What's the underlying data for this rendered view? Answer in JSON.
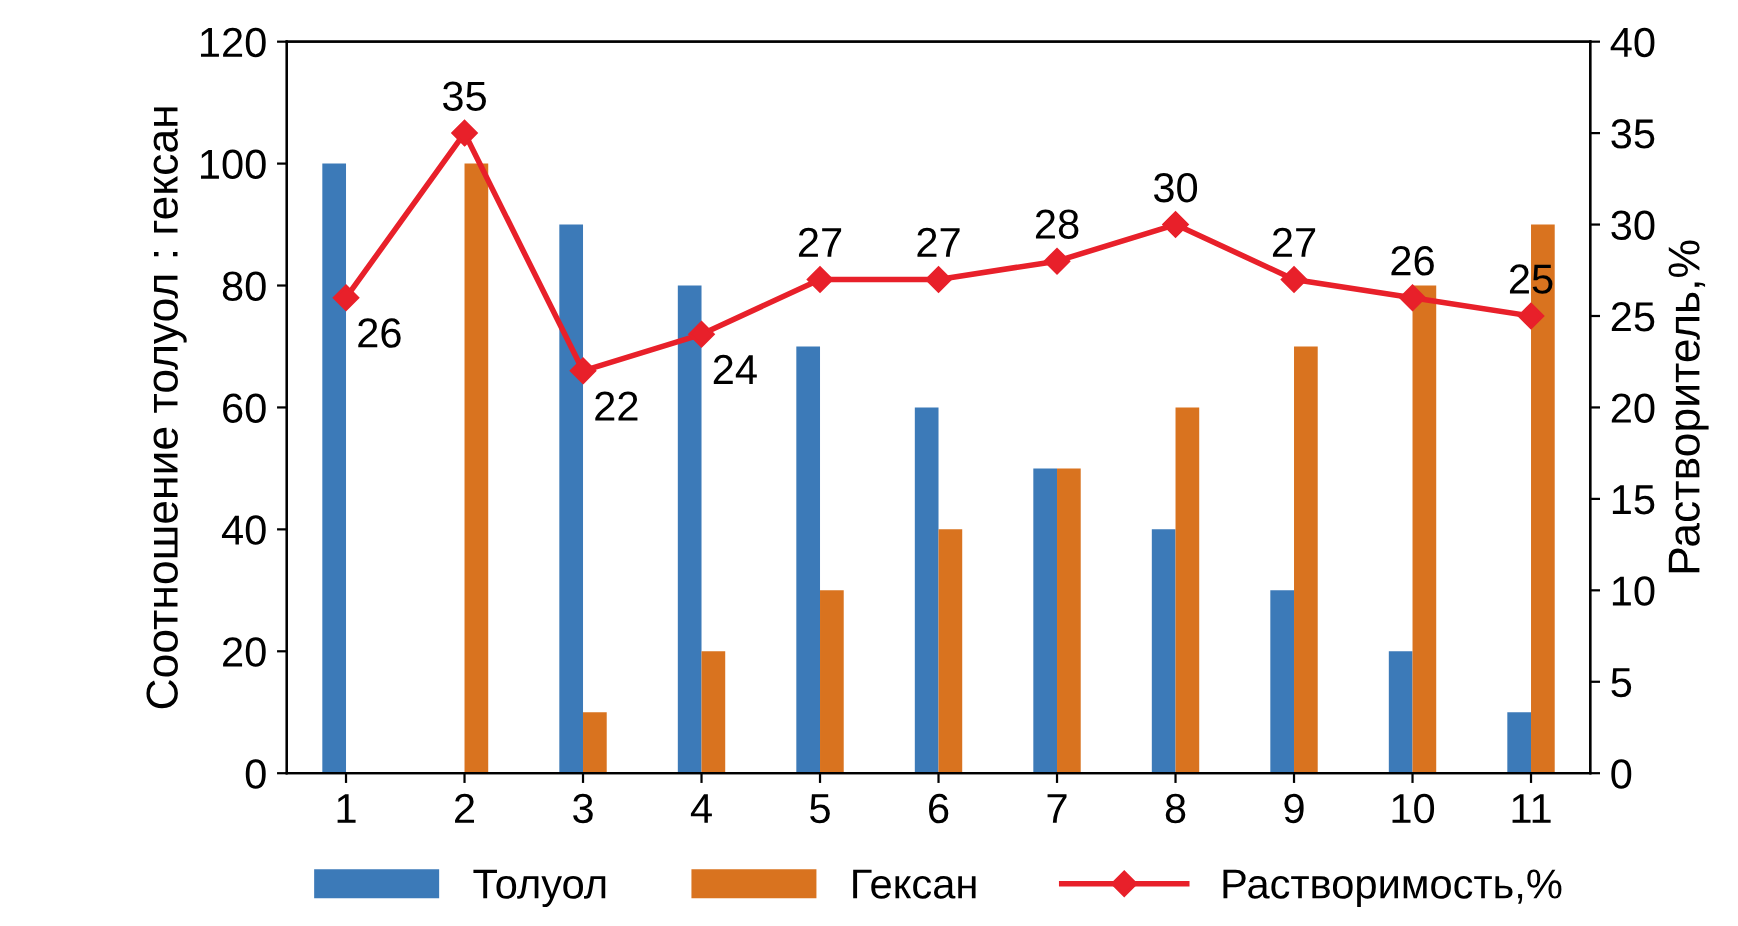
{
  "chart_data": {
    "type": "bar",
    "categories": [
      "1",
      "2",
      "3",
      "4",
      "5",
      "6",
      "7",
      "8",
      "9",
      "10",
      "11"
    ],
    "series": [
      {
        "name": "Толуол",
        "color": "#3c7ab8",
        "values": [
          100,
          0,
          90,
          80,
          70,
          60,
          50,
          40,
          30,
          20,
          10
        ]
      },
      {
        "name": "Гексан",
        "color": "#d9731f",
        "values": [
          0,
          100,
          10,
          20,
          30,
          40,
          50,
          60,
          70,
          80,
          90
        ]
      },
      {
        "name": "Растворимость,%",
        "type": "line",
        "axis": "y2",
        "color": "#e8202a",
        "marker": "diamond",
        "data_labels": true,
        "values": [
          26,
          35,
          22,
          24,
          27,
          27,
          28,
          30,
          27,
          26,
          25
        ]
      }
    ],
    "ylabel": "Соотношение толуол : гексан",
    "y2label": "Растворитель,%",
    "ylim": [
      0,
      120
    ],
    "yticks": [
      0,
      20,
      40,
      60,
      80,
      100,
      120
    ],
    "y2lim": [
      0,
      40
    ],
    "y2ticks": [
      0,
      5,
      10,
      15,
      20,
      25,
      30,
      35,
      40
    ],
    "grid": false,
    "legend": "bottom"
  }
}
